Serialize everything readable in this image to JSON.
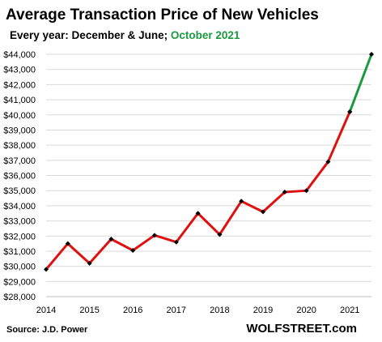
{
  "chart_data": {
    "type": "line",
    "title": "Average Transaction  Price of New Vehicles",
    "subtitle_parts": [
      {
        "text": "Every year: December & June; ",
        "color": "#000000"
      },
      {
        "text": "October 2021",
        "color": "#1a9a3e"
      }
    ],
    "source": "Source: J.D. Power",
    "watermark": "WOLFSTREET.com",
    "xlabel": "",
    "ylabel": "",
    "x_ticks": [
      "2014",
      "2015",
      "2016",
      "2017",
      "2018",
      "2019",
      "2020",
      "2021"
    ],
    "y_ticks": [
      "$28,000",
      "$29,000",
      "$30,000",
      "$31,000",
      "$32,000",
      "$33,000",
      "$34,000",
      "$35,000",
      "$36,000",
      "$37,000",
      "$38,000",
      "$39,000",
      "$40,000",
      "$41,000",
      "$42,000",
      "$43,000",
      "$44,000"
    ],
    "xlim": [
      2014,
      2021.5
    ],
    "ylim": [
      28000,
      44000
    ],
    "grid": "horizontal",
    "series": [
      {
        "color": "#e01010",
        "marker_color": "#000000",
        "points": [
          {
            "x": 2014.0,
            "y": 29800
          },
          {
            "x": 2014.5,
            "y": 31500
          },
          {
            "x": 2015.0,
            "y": 30200
          },
          {
            "x": 2015.5,
            "y": 31800
          },
          {
            "x": 2016.0,
            "y": 31050
          },
          {
            "x": 2016.5,
            "y": 32050
          },
          {
            "x": 2017.0,
            "y": 31600
          },
          {
            "x": 2017.5,
            "y": 33500
          },
          {
            "x": 2018.0,
            "y": 32100
          },
          {
            "x": 2018.5,
            "y": 34300
          },
          {
            "x": 2019.0,
            "y": 33600
          },
          {
            "x": 2019.5,
            "y": 34900
          },
          {
            "x": 2020.0,
            "y": 35000
          },
          {
            "x": 2020.5,
            "y": 36900
          },
          {
            "x": 2021.0,
            "y": 40200
          }
        ]
      },
      {
        "color": "#1a9a3e",
        "marker_color": "#000000",
        "points": [
          {
            "x": 2021.0,
            "y": 40200
          },
          {
            "x": 2021.5,
            "y": 44000
          }
        ]
      }
    ]
  }
}
